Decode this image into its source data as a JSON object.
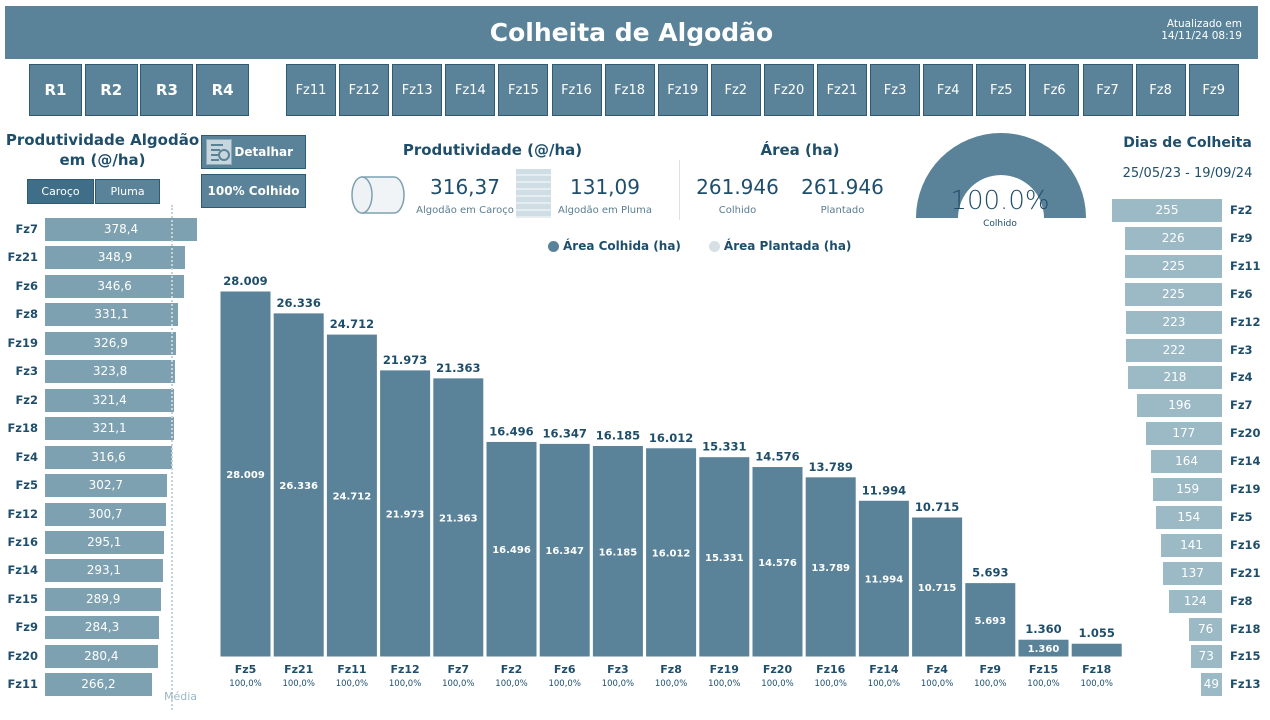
{
  "header": {
    "title": "Colheita de Algodão",
    "updated_label": "Atualizado em",
    "updated_value": "14/11/24 08:19"
  },
  "region_buttons": [
    "R1",
    "R2",
    "R3",
    "R4"
  ],
  "farm_buttons": [
    "Fz11",
    "Fz12",
    "Fz13",
    "Fz14",
    "Fz15",
    "Fz16",
    "Fz18",
    "Fz19",
    "Fz2",
    "Fz20",
    "Fz21",
    "Fz3",
    "Fz4",
    "Fz5",
    "Fz6",
    "Fz7",
    "Fz8",
    "Fz9"
  ],
  "productivity_panel": {
    "title_line1": "Produtividade Algodão",
    "title_line2": "em (@/ha)",
    "toggle": [
      {
        "label": "Caroço",
        "active": true
      },
      {
        "label": "Pluma",
        "active": false
      }
    ],
    "mean_label": "Média",
    "rows": [
      {
        "farm": "Fz7",
        "value": 378.4,
        "label": "378,4"
      },
      {
        "farm": "Fz21",
        "value": 348.9,
        "label": "348,9"
      },
      {
        "farm": "Fz6",
        "value": 346.6,
        "label": "346,6"
      },
      {
        "farm": "Fz8",
        "value": 331.1,
        "label": "331,1"
      },
      {
        "farm": "Fz19",
        "value": 326.9,
        "label": "326,9"
      },
      {
        "farm": "Fz3",
        "value": 323.8,
        "label": "323,8"
      },
      {
        "farm": "Fz2",
        "value": 321.4,
        "label": "321,4"
      },
      {
        "farm": "Fz18",
        "value": 321.1,
        "label": "321,1"
      },
      {
        "farm": "Fz4",
        "value": 316.6,
        "label": "316,6"
      },
      {
        "farm": "Fz5",
        "value": 302.7,
        "label": "302,7"
      },
      {
        "farm": "Fz12",
        "value": 300.7,
        "label": "300,7"
      },
      {
        "farm": "Fz16",
        "value": 295.1,
        "label": "295,1"
      },
      {
        "farm": "Fz14",
        "value": 293.1,
        "label": "293,1"
      },
      {
        "farm": "Fz15",
        "value": 289.9,
        "label": "289,9"
      },
      {
        "farm": "Fz9",
        "value": 284.3,
        "label": "284,3"
      },
      {
        "farm": "Fz20",
        "value": 280.4,
        "label": "280,4"
      },
      {
        "farm": "Fz11",
        "value": 266.2,
        "label": "266,2"
      }
    ]
  },
  "actions": {
    "detail_label": "Detalhar",
    "harvested_label": "100% Colhido"
  },
  "kpis": {
    "productivity_title": "Produtividade (@/ha)",
    "caroco_value": "316,37",
    "caroco_label": "Algodão em Caroço",
    "pluma_value": "131,09",
    "pluma_label": "Algodão em Pluma",
    "area_title": "Área (ha)",
    "harvested_value": "261.946",
    "harvested_label": "Colhido",
    "planted_value": "261.946",
    "planted_label": "Plantado"
  },
  "gauge": {
    "value_pct": 100.0,
    "value_label": "100.0%",
    "sub_label": "Colhido"
  },
  "dias_panel": {
    "title": "Dias de Colheita",
    "date_range": "25/05/23 - 19/09/24",
    "rows": [
      {
        "farm": "Fz2",
        "value": 255
      },
      {
        "farm": "Fz9",
        "value": 226
      },
      {
        "farm": "Fz11",
        "value": 225
      },
      {
        "farm": "Fz6",
        "value": 225
      },
      {
        "farm": "Fz12",
        "value": 223
      },
      {
        "farm": "Fz3",
        "value": 222
      },
      {
        "farm": "Fz4",
        "value": 218
      },
      {
        "farm": "Fz7",
        "value": 196
      },
      {
        "farm": "Fz20",
        "value": 177
      },
      {
        "farm": "Fz14",
        "value": 164
      },
      {
        "farm": "Fz19",
        "value": 159
      },
      {
        "farm": "Fz5",
        "value": 154
      },
      {
        "farm": "Fz16",
        "value": 141
      },
      {
        "farm": "Fz21",
        "value": 137
      },
      {
        "farm": "Fz8",
        "value": 124
      },
      {
        "farm": "Fz18",
        "value": 76
      },
      {
        "farm": "Fz15",
        "value": 73
      },
      {
        "farm": "Fz13",
        "value": 49
      }
    ]
  },
  "chart_data": {
    "type": "bar",
    "title": "",
    "legend": [
      {
        "name": "Área Colhida (ha)",
        "color": "#5a8399"
      },
      {
        "name": "Área Plantada (ha)",
        "color": "#d6dfe4"
      }
    ],
    "legend_position": "top-center",
    "categories": [
      "Fz5",
      "Fz21",
      "Fz11",
      "Fz12",
      "Fz7",
      "Fz2",
      "Fz6",
      "Fz3",
      "Fz8",
      "Fz19",
      "Fz20",
      "Fz16",
      "Fz14",
      "Fz4",
      "Fz9",
      "Fz15",
      "Fz18"
    ],
    "series": [
      {
        "name": "Área Plantada (ha)",
        "values": [
          28009,
          26336,
          24712,
          21973,
          21363,
          16496,
          16347,
          16185,
          16012,
          15331,
          14576,
          13789,
          11994,
          10715,
          5693,
          1360,
          1055
        ],
        "labels": [
          "28.009",
          "26.336",
          "24.712",
          "21.973",
          "21.363",
          "16.496",
          "16.347",
          "16.185",
          "16.012",
          "15.331",
          "14.576",
          "13.789",
          "11.994",
          "10.715",
          "5.693",
          "1.360",
          "1.055"
        ]
      },
      {
        "name": "Área Colhida (ha)",
        "values": [
          28009,
          26336,
          24712,
          21973,
          21363,
          16496,
          16347,
          16185,
          16012,
          15331,
          14576,
          13789,
          11994,
          10715,
          5693,
          1360,
          1055
        ],
        "labels": [
          "28.009",
          "26.336",
          "24.712",
          "21.973",
          "21.363",
          "16.496",
          "16.347",
          "16.185",
          "16.012",
          "15.331",
          "14.576",
          "13.789",
          "11.994",
          "10.715",
          "5.693",
          "1.360",
          ""
        ]
      }
    ],
    "pct_labels": [
      "100,0%",
      "100,0%",
      "100,0%",
      "100,0%",
      "100,0%",
      "100,0%",
      "100,0%",
      "100,0%",
      "100,0%",
      "100,0%",
      "100,0%",
      "100,0%",
      "100,0%",
      "100,0%",
      "100,0%",
      "100,0%",
      "100,0%"
    ],
    "xlabel": "",
    "ylabel": "",
    "ylim": [
      0,
      28009
    ]
  }
}
